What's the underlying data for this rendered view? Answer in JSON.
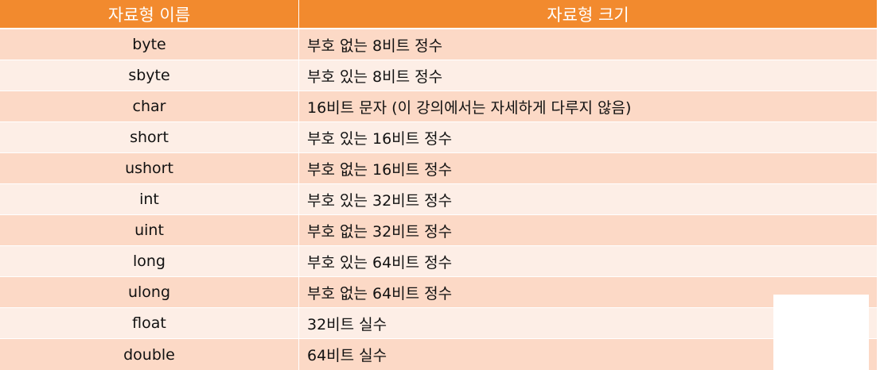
{
  "header": {
    "col1": "자료형 이름",
    "col2": "자료형 크기"
  },
  "rows": [
    {
      "name": "byte",
      "size": "부호 없는 8비트 정수"
    },
    {
      "name": "sbyte",
      "size": "부호 있는 8비트 정수"
    },
    {
      "name": "char",
      "size": "16비트 문자 (이 강의에서는 자세하게 다루지 않음)"
    },
    {
      "name": "short",
      "size": "부호 있는 16비트 정수"
    },
    {
      "name": "ushort",
      "size": "부호 없는 16비트 정수"
    },
    {
      "name": "int",
      "size": "부호 있는 32비트 정수"
    },
    {
      "name": "uint",
      "size": "부호 없는 32비트 정수"
    },
    {
      "name": "long",
      "size": "부호 있는 64비트 정수"
    },
    {
      "name": "ulong",
      "size": "부호 없는 64비트 정수"
    },
    {
      "name": "float",
      "size": "32비트 실수"
    },
    {
      "name": "double",
      "size": "64비트 실수"
    }
  ],
  "colors": {
    "header": "#f28a2e",
    "row_odd": "#fcd9c6",
    "row_even": "#fdeee6"
  }
}
